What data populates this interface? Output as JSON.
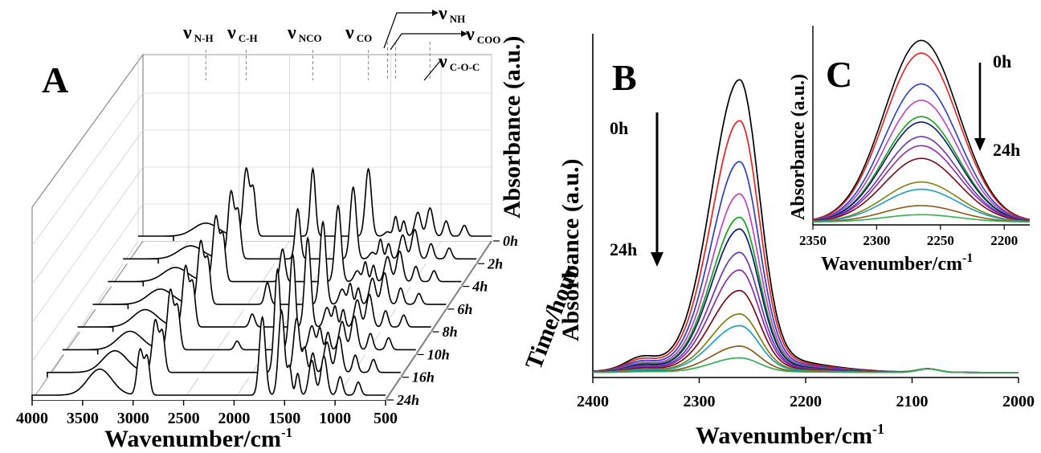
{
  "chart_data": [
    {
      "panel": "A",
      "type": "line",
      "style": "3d-waterfall",
      "xlabel": "Wavenumber/cm",
      "xlabel_sup": "-1",
      "ylabel": "Absorbance (a.u.)",
      "zlabel": "Time/hour",
      "xlim": [
        4000,
        500
      ],
      "xticks": [
        4000,
        3500,
        3000,
        2500,
        2000,
        1500,
        1000,
        500
      ],
      "xtick_labels": [
        "4000",
        "3500",
        "3000",
        "2500",
        "2000",
        "1500",
        "1000",
        "500"
      ],
      "time_labels": [
        "0h",
        "2h",
        "4h",
        "6h",
        "8h",
        "10h",
        "16h",
        "24h"
      ],
      "annotations": [
        {
          "symbol": "ν",
          "sub": "N-H",
          "x": 3330
        },
        {
          "symbol": "ν",
          "sub": "C-H",
          "x": 2930
        },
        {
          "symbol": "ν",
          "sub": "NCO",
          "x": 2270
        },
        {
          "symbol": "ν",
          "sub": "CO",
          "x": 1720
        },
        {
          "symbol": "ν",
          "sub": "NH",
          "x": 1530
        },
        {
          "symbol": "ν",
          "sub": "COO",
          "x": 1450
        },
        {
          "symbol": "ν",
          "sub": "C-O-C",
          "x": 1110
        }
      ],
      "peaks": [
        {
          "x": 3330,
          "width": 120,
          "heights": [
            0.12,
            0.12,
            0.13,
            0.14,
            0.16,
            0.17,
            0.2,
            0.24
          ]
        },
        {
          "x": 2930,
          "width": 30,
          "heights": [
            0.62,
            0.62,
            0.6,
            0.58,
            0.56,
            0.55,
            0.48,
            0.42
          ]
        },
        {
          "x": 2860,
          "width": 25,
          "heights": [
            0.42,
            0.42,
            0.41,
            0.4,
            0.39,
            0.38,
            0.36,
            0.34
          ]
        },
        {
          "x": 2270,
          "width": 25,
          "heights": [
            0.62,
            0.46,
            0.3,
            0.2,
            0.12,
            0.08,
            0.0,
            0.0
          ]
        },
        {
          "x": 1720,
          "width": 30,
          "heights": [
            0.62,
            0.66,
            0.7,
            0.76,
            0.82,
            0.88,
            0.95,
            0.72
          ]
        },
        {
          "x": 1530,
          "width": 30,
          "heights": [
            0.04,
            0.06,
            0.1,
            0.14,
            0.18,
            0.22,
            0.5,
            0.78
          ]
        },
        {
          "x": 1450,
          "width": 20,
          "heights": [
            0.18,
            0.18,
            0.18,
            0.19,
            0.19,
            0.2,
            0.22,
            0.25
          ]
        },
        {
          "x": 1370,
          "width": 20,
          "heights": [
            0.14,
            0.14,
            0.15,
            0.15,
            0.16,
            0.16,
            0.18,
            0.2
          ]
        },
        {
          "x": 1230,
          "width": 30,
          "heights": [
            0.22,
            0.22,
            0.23,
            0.24,
            0.25,
            0.26,
            0.28,
            0.32
          ]
        },
        {
          "x": 1110,
          "width": 30,
          "heights": [
            0.26,
            0.27,
            0.28,
            0.29,
            0.3,
            0.31,
            0.33,
            0.36
          ]
        },
        {
          "x": 950,
          "width": 25,
          "heights": [
            0.14,
            0.14,
            0.14,
            0.15,
            0.15,
            0.15,
            0.16,
            0.17
          ]
        },
        {
          "x": 770,
          "width": 25,
          "heights": [
            0.1,
            0.1,
            0.1,
            0.1,
            0.11,
            0.11,
            0.12,
            0.12
          ]
        }
      ]
    },
    {
      "panel": "B",
      "type": "line",
      "xlabel": "Wavenumber/cm",
      "xlabel_sup": "-1",
      "ylabel": "Absorbance (a.u.)",
      "xlim": [
        2400,
        2000
      ],
      "xticks": [
        2400,
        2300,
        2200,
        2100,
        2000
      ],
      "xtick_labels": [
        "2400",
        "2300",
        "2200",
        "2100",
        "2000"
      ],
      "arrow_start_label": "0h",
      "arrow_end_label": "24h",
      "peak_center": 2262,
      "shoulder_center": 2355,
      "small_band_center": 2085,
      "series": [
        {
          "color": "#000000",
          "peak": 1.0
        },
        {
          "color": "#e8201f",
          "peak": 0.86
        },
        {
          "color": "#2a3fc0",
          "peak": 0.72
        },
        {
          "color": "#c040c8",
          "peak": 0.61
        },
        {
          "color": "#16a020",
          "peak": 0.53
        },
        {
          "color": "#0a1a70",
          "peak": 0.49
        },
        {
          "color": "#6a38a8",
          "peak": 0.41
        },
        {
          "color": "#8c2aa8",
          "peak": 0.35
        },
        {
          "color": "#7a0a1a",
          "peak": 0.28
        },
        {
          "color": "#808010",
          "peak": 0.2
        },
        {
          "color": "#1f9ec0",
          "peak": 0.16
        },
        {
          "color": "#8a5a1a",
          "peak": 0.09
        },
        {
          "color": "#30b050",
          "peak": 0.05
        }
      ]
    },
    {
      "panel": "C",
      "type": "line",
      "xlabel": "Wavenumber/cm",
      "xlabel_sup": "-1",
      "ylabel": "Absorbance (a.u.)",
      "xlim": [
        2350,
        2180
      ],
      "xticks": [
        2350,
        2300,
        2250,
        2200
      ],
      "xtick_labels": [
        "2350",
        "2300",
        "2250",
        "2200"
      ],
      "arrow_start_label": "0h",
      "arrow_end_label": "24h",
      "peak_center": 2265,
      "series": [
        {
          "color": "#000000",
          "peak": 1.0
        },
        {
          "color": "#e8201f",
          "peak": 0.93
        },
        {
          "color": "#2a3fc0",
          "peak": 0.76
        },
        {
          "color": "#c040c8",
          "peak": 0.67
        },
        {
          "color": "#16a020",
          "peak": 0.58
        },
        {
          "color": "#0a1a70",
          "peak": 0.55
        },
        {
          "color": "#6a38a8",
          "peak": 0.47
        },
        {
          "color": "#8c2aa8",
          "peak": 0.42
        },
        {
          "color": "#7a0a1a",
          "peak": 0.35
        },
        {
          "color": "#808010",
          "peak": 0.22
        },
        {
          "color": "#1f9ec0",
          "peak": 0.18
        },
        {
          "color": "#8a5a1a",
          "peak": 0.09
        },
        {
          "color": "#30b050",
          "peak": 0.04
        }
      ]
    }
  ]
}
